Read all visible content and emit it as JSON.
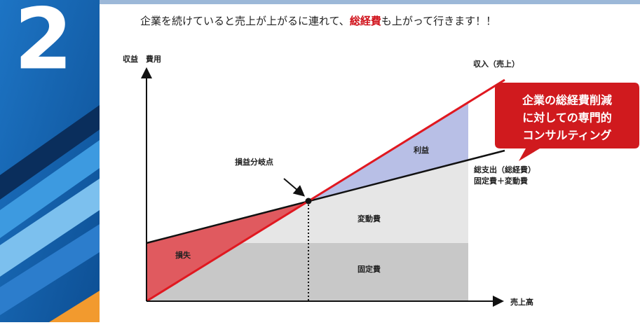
{
  "badge": "2",
  "headline": {
    "before": "企業を続けていると売上が上がるに連れて、",
    "emphasis": "総経費",
    "after": "も上がって行きます！！"
  },
  "diagram": {
    "y_axis_label": "収益　費用",
    "x_axis_label": "売上高",
    "revenue_label": "収入（売上）",
    "break_even_label": "損益分岐点",
    "profit_label": "利益",
    "loss_label": "損失",
    "variable_cost_label": "変動費",
    "fixed_cost_label": "固定費",
    "total_cost_label": "総支出（総経費）",
    "total_cost_formula": "固定費＋変動費"
  },
  "callout": {
    "lines": [
      "企業の総経費削減",
      "に対しての専門的",
      "コンサルティング"
    ]
  }
}
